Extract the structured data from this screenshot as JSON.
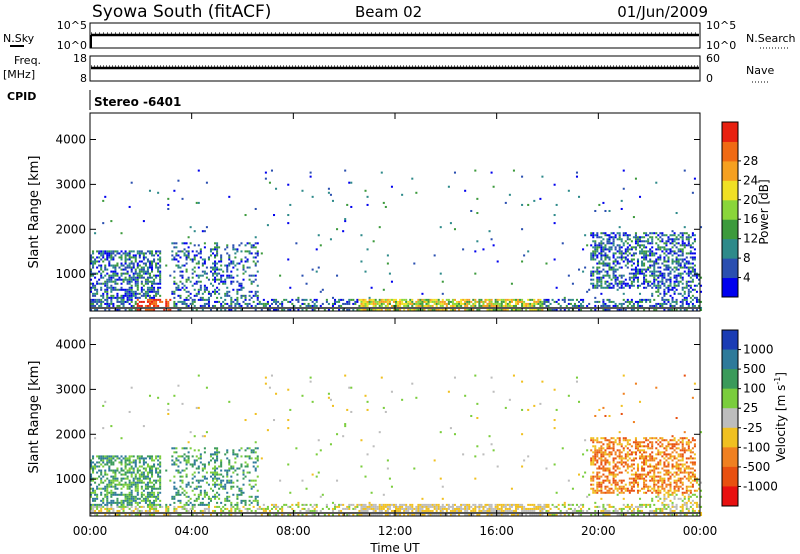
{
  "header": {
    "title": "Syowa South (fitACF)",
    "beam": "Beam 02",
    "date": "01/Jun/2009"
  },
  "top_panels": {
    "nsky_label": "N.Sky",
    "nsky_ticks": [
      "10^5",
      "10^0"
    ],
    "nsearch_label": "N.Search",
    "nsearch_ticks": [
      "10^5",
      "10^0"
    ],
    "freq_label": "Freq.",
    "freq_unit": "[MHz]",
    "freq_ticks": [
      "18",
      "8"
    ],
    "nave_label": "Nave",
    "nave_ticks": [
      "60",
      "0"
    ],
    "cpid_label": "CPID",
    "cpid_value": "Stereo -6401"
  },
  "chart_data": [
    {
      "type": "heatmap",
      "name": "power",
      "ylabel": "Slant Range [km]",
      "ylim": [
        180,
        4590
      ],
      "yticks": [
        1000,
        2000,
        3000,
        4000
      ],
      "xlim": [
        0,
        24
      ],
      "colorbar_label": "Power [dB]",
      "colorbar_ticks": [
        "4",
        "8",
        "12",
        "16",
        "20",
        "24",
        "28"
      ],
      "colorbar_colors": [
        "#0000ee",
        "#2a4fb0",
        "#2e8a8a",
        "#3c9a3c",
        "#8ad63a",
        "#f0e024",
        "#f5a020",
        "#f06a14",
        "#e82010"
      ]
    },
    {
      "type": "heatmap",
      "name": "velocity",
      "ylabel": "Slant Range [km]",
      "ylim": [
        180,
        4590
      ],
      "yticks": [
        1000,
        2000,
        3000,
        4000
      ],
      "xlim": [
        0,
        24
      ],
      "xlabel": "Time UT",
      "xtick_labels": [
        "00:00",
        "04:00",
        "08:00",
        "12:00",
        "16:00",
        "20:00",
        "00:00"
      ],
      "colorbar_label": "Velocity [m s",
      "colorbar_label_sup": "-1",
      "colorbar_label_end": "]",
      "colorbar_ticks": [
        "1000",
        "500",
        "100",
        "25",
        "-25",
        "-100",
        "-500",
        "-1000"
      ],
      "colorbar_colors": [
        "#1a3cb4",
        "#2e7a9a",
        "#3a9a5a",
        "#7acd3c",
        "#bdbdbd",
        "#f0c020",
        "#f08020",
        "#e85010",
        "#e81010"
      ]
    }
  ]
}
